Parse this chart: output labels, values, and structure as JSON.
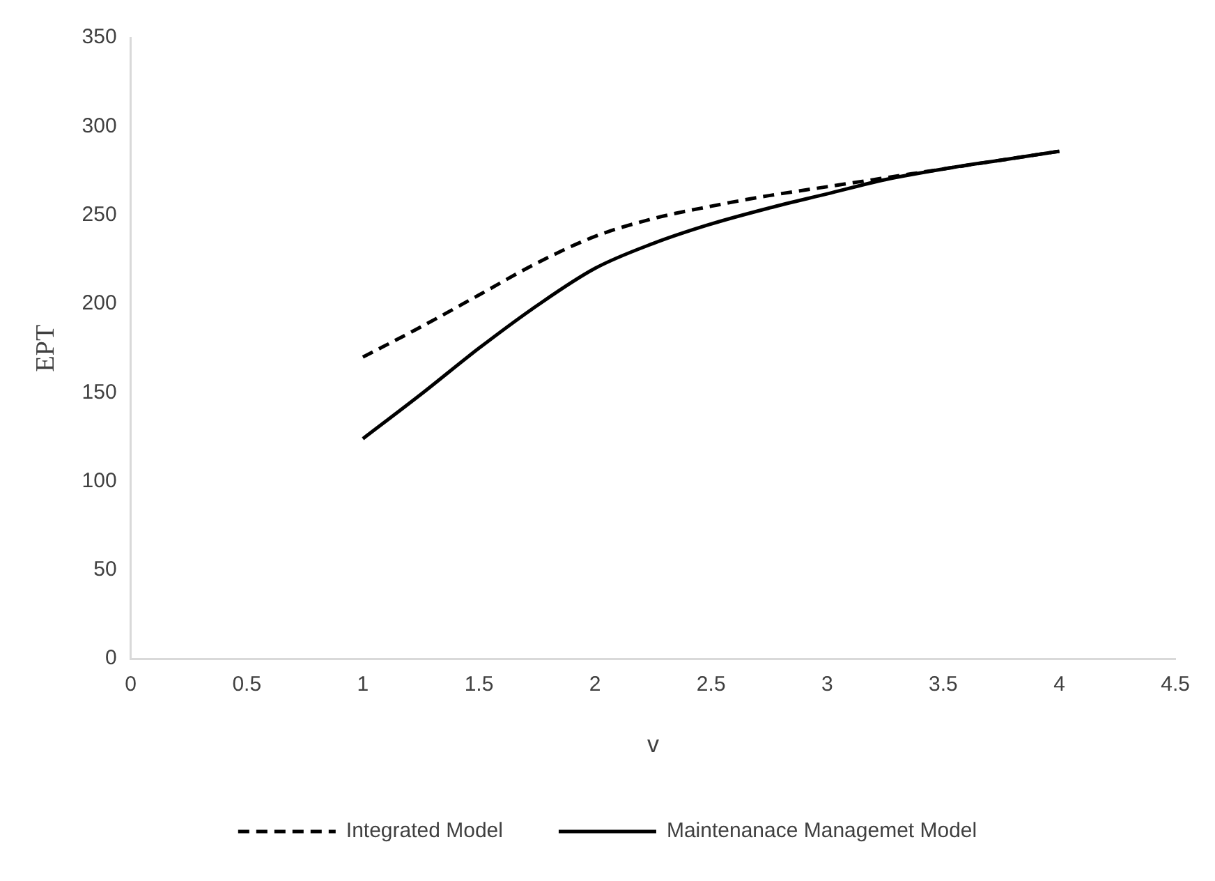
{
  "chart_data": {
    "type": "line",
    "xlabel": "v",
    "ylabel": "EPT",
    "xlim": [
      0,
      4.5
    ],
    "xticks": [
      0,
      0.5,
      1,
      1.5,
      2,
      2.5,
      3,
      3.5,
      4,
      4.5
    ],
    "ylim": [
      0,
      350
    ],
    "yticks": [
      0,
      50,
      100,
      150,
      200,
      250,
      300,
      350
    ],
    "grid": false,
    "legend": "bottom",
    "marker": "none",
    "series": [
      {
        "name": "Integrated Model",
        "color": "#000000",
        "line_style": "dashed",
        "x": [
          1,
          1.25,
          1.5,
          1.75,
          2,
          2.25,
          2.5,
          2.75,
          3,
          3.25,
          3.5,
          3.75,
          4
        ],
        "values": [
          170,
          187,
          205,
          223,
          238,
          248,
          255,
          261,
          266,
          271,
          276,
          281,
          286
        ]
      },
      {
        "name": "Maintenanace Managemet Model",
        "color": "#000000",
        "line_style": "solid",
        "x": [
          1,
          1.25,
          1.5,
          1.75,
          2,
          2.25,
          2.5,
          2.75,
          3,
          3.25,
          3.5,
          3.75,
          4
        ],
        "values": [
          124,
          149,
          175,
          199,
          220,
          234,
          245,
          254,
          262,
          270,
          276,
          281,
          286
        ]
      }
    ]
  }
}
